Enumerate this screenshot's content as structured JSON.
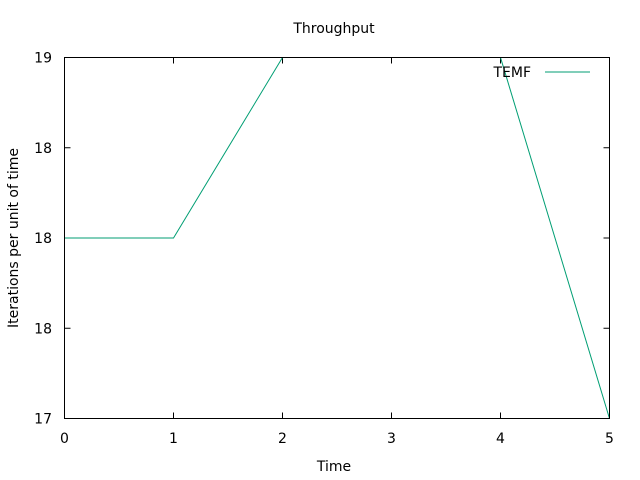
{
  "chart_data": {
    "type": "line",
    "title": "Throughput",
    "xlabel": "Time",
    "ylabel": "Iterations per unit of time",
    "xlim": [
      0,
      5
    ],
    "ylim": [
      17,
      19
    ],
    "x_ticks": [
      0,
      1,
      2,
      3,
      4,
      5
    ],
    "x_tick_labels": [
      "0",
      "1",
      "2",
      "3",
      "4",
      "5"
    ],
    "y_ticks": [
      17,
      17.5,
      18,
      18.5,
      19
    ],
    "y_tick_labels": [
      "17",
      "18",
      "18",
      "18",
      "19"
    ],
    "grid": false,
    "legend_position": "top-right",
    "series": [
      {
        "name": "TEMF",
        "color": "#009e73",
        "x": [
          0,
          1,
          2,
          3,
          4,
          5
        ],
        "values": [
          18,
          18,
          19,
          19,
          19,
          17
        ]
      }
    ]
  }
}
